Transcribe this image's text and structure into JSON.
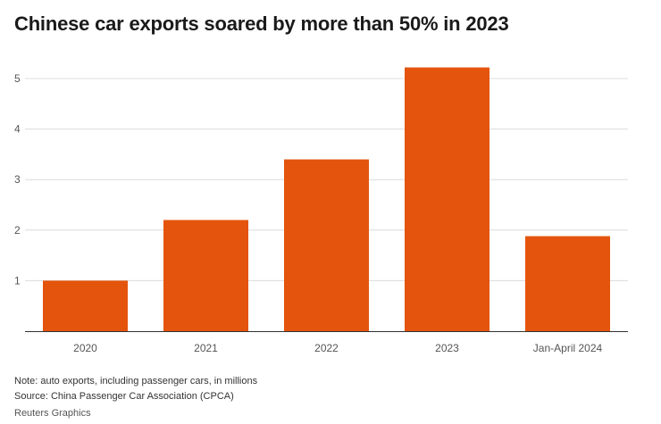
{
  "title": "Chinese car exports soared by more than 50% in 2023",
  "chart_data": {
    "type": "bar",
    "title": "Chinese car exports soared by more than 50% in 2023",
    "categories": [
      "2020",
      "2021",
      "2022",
      "2023",
      "Jan-April 2024"
    ],
    "values": [
      1.0,
      2.2,
      3.4,
      5.22,
      1.88
    ],
    "xlabel": "",
    "ylabel": "",
    "ylim": [
      0,
      5.5
    ],
    "yticks": [
      1,
      2,
      3,
      4,
      5
    ],
    "grid": true,
    "bar_color": "#e4540c",
    "grid_color": "#dcdcdc",
    "axis_color": "#333333"
  },
  "notes": {
    "note": "Note: auto exports, including passenger cars, in millions",
    "source": "Source: China Passenger Car Association (CPCA)"
  },
  "credit": "Reuters Graphics"
}
